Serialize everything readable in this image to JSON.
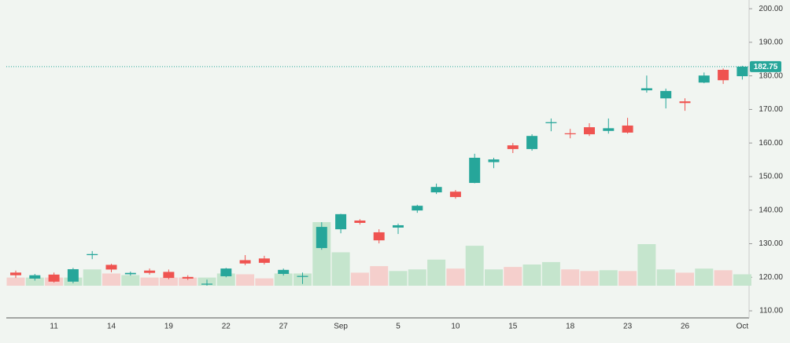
{
  "chart_data": {
    "type": "candlestick",
    "categories": [
      null,
      null,
      "11",
      null,
      null,
      "14",
      null,
      null,
      "19",
      null,
      null,
      "22",
      null,
      null,
      "27",
      null,
      null,
      "Sep",
      null,
      null,
      "5",
      null,
      null,
      "10",
      null,
      null,
      "15",
      null,
      null,
      "18",
      null,
      null,
      "23",
      null,
      null,
      "26",
      null,
      null,
      "Oct"
    ],
    "open": [
      121.4,
      119.6,
      120.8,
      118.7,
      126.6,
      123.7,
      120.9,
      122,
      121.6,
      120.1,
      117.8,
      120.3,
      125.1,
      125.6,
      121,
      120.1,
      128.7,
      134.3,
      136.9,
      133.4,
      134.8,
      139.9,
      145.3,
      145.5,
      148.1,
      154.3,
      159.3,
      158.2,
      165.9,
      162.9,
      164.7,
      163.6,
      165.2,
      175.7,
      173.3,
      172.4,
      178,
      181.8,
      179.9
    ],
    "high": [
      122,
      121,
      121.4,
      122.8,
      127.8,
      124,
      121.7,
      122.6,
      122.3,
      120.6,
      119.3,
      122.8,
      126.6,
      126.4,
      122.6,
      121.4,
      136.4,
      138.9,
      137.3,
      134.3,
      136,
      141.6,
      147.9,
      146,
      156.8,
      155.6,
      160,
      162.6,
      167.3,
      164.2,
      165.9,
      167.3,
      167.5,
      180.1,
      176.2,
      173.3,
      181,
      182.2,
      183
    ],
    "low": [
      119.8,
      119,
      118.4,
      118.2,
      125.4,
      121.5,
      120.5,
      120.8,
      119.4,
      119.2,
      117.5,
      120,
      123.6,
      123.8,
      120.5,
      118,
      128.2,
      133.1,
      135.7,
      130.1,
      132.9,
      139.2,
      144.8,
      143.4,
      148,
      152.5,
      157,
      157.7,
      163.5,
      161.4,
      162.1,
      162.8,
      162.8,
      175,
      170.3,
      169.6,
      177.8,
      177.6,
      178.9
    ],
    "close": [
      120.6,
      120.6,
      118.7,
      122.4,
      126.9,
      122.3,
      121.3,
      121.3,
      119.8,
      119.6,
      118.1,
      122.6,
      124.1,
      124.3,
      122.2,
      120.4,
      135,
      138.8,
      136.2,
      131,
      135.5,
      141.3,
      146.9,
      143.9,
      155.6,
      155.1,
      158.2,
      162.1,
      166.2,
      162.6,
      162.6,
      164.4,
      163.1,
      176.3,
      175.5,
      171.9,
      180.1,
      178.7,
      182.75
    ],
    "volume": [
      10,
      10,
      10,
      10,
      20,
      15,
      13,
      10,
      10,
      10,
      10,
      15,
      14,
      9,
      15,
      15,
      78,
      41,
      16,
      24,
      18,
      20,
      32,
      21,
      49,
      20,
      23,
      26,
      29,
      20,
      18,
      19,
      18,
      51,
      20,
      16,
      21,
      19,
      14
    ],
    "up_color": "#26a69a",
    "down_color": "#ef5350",
    "up_volume_color": "#c5e5cd",
    "down_volume_color": "#f5cfcc",
    "last_price": 182.75,
    "ylim": [
      107.9,
      202.6
    ],
    "yticks": [
      {
        "value": 110,
        "label": "110.00"
      },
      {
        "value": 120,
        "label": "120.00"
      },
      {
        "value": 130,
        "label": "130.00"
      },
      {
        "value": 140,
        "label": "140.00"
      },
      {
        "value": 150,
        "label": "150.00"
      },
      {
        "value": 160,
        "label": "160.00"
      },
      {
        "value": 170,
        "label": "170.00"
      },
      {
        "value": 180,
        "label": "180.00"
      },
      {
        "value": 190,
        "label": "190.00"
      },
      {
        "value": 200,
        "label": "200.00"
      }
    ]
  }
}
